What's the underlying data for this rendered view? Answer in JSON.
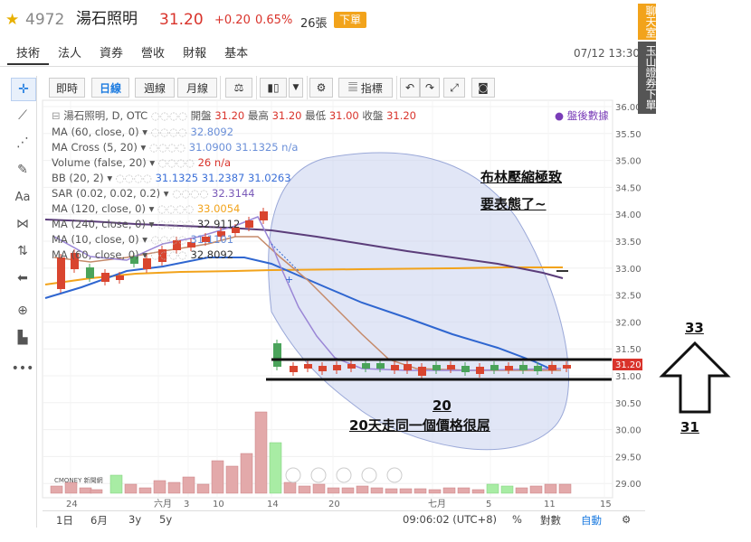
{
  "header": {
    "star_icon": "star-icon",
    "code": "4972",
    "name": "湯石照明",
    "price": "31.20",
    "change": "+0.20",
    "change_pct": "0.65%",
    "volume": "26張",
    "sell_button": "下單"
  },
  "tabs": [
    "技術",
    "法人",
    "資券",
    "營收",
    "財報",
    "基本"
  ],
  "datetime": "07/12 13:30",
  "toolbar": {
    "realtime": "即時",
    "daily": "日線",
    "weekly": "週線",
    "monthly": "月線",
    "indicators": "指標"
  },
  "legend": {
    "title": "湯石照明, D, OTC",
    "open_label": "開盤",
    "open": "31.20",
    "high_label": "最高",
    "high": "31.20",
    "low_label": "最低",
    "low": "31.00",
    "close_label": "收盤",
    "close": "31.20",
    "after_hours": "盤後數據",
    "rows": [
      {
        "label": "MA (60, close, 0)",
        "values": "32.8092",
        "color": "#6a8fd8"
      },
      {
        "label": "MA Cross (5, 20)",
        "values": "31.0900  31.1325  n/a",
        "color": "#6a8fd8"
      },
      {
        "label": "Volume (false, 20)",
        "values": "26  n/a",
        "color": "#d9332b"
      },
      {
        "label": "BB (20, 2)",
        "values": "31.1325  31.2387  31.0263",
        "color": "#3a6fd8"
      },
      {
        "label": "SAR (0.02, 0.02, 0.2)",
        "values": "32.3144",
        "color": "#7a5ab8"
      },
      {
        "label": "MA (120, close, 0)",
        "values": "33.0054",
        "color": "#f2a31b"
      },
      {
        "label": "MA (240, close, 0)",
        "values": "32.9112",
        "color": "#333333"
      },
      {
        "label": "MA (10, close, 0)",
        "values": "31.1101",
        "color": "#6a8fd8"
      },
      {
        "label": "MA (60, close, 0)",
        "values": "32.8092",
        "color": "#333333"
      }
    ]
  },
  "price_axis": [
    "36.00",
    "35.50",
    "35.00",
    "34.50",
    "34.00",
    "33.50",
    "33.00",
    "32.50",
    "32.00",
    "31.50",
    "31.00",
    "30.50",
    "30.00",
    "29.50",
    "29.00"
  ],
  "current_price_tag": "31.20",
  "date_axis": [
    "24",
    "六月",
    "3",
    "10",
    "14",
    "20",
    "七月",
    "5",
    "11",
    "15"
  ],
  "annotations": {
    "bollinger_note_line1": "布林壓縮極致",
    "bollinger_note_line2": "要表態了~",
    "count": "20",
    "range_note": "20天走同一個價格很屌",
    "arrow_top": "33",
    "arrow_bottom": "31"
  },
  "bottom_bar": {
    "ranges": [
      "1日",
      "6月",
      "3y",
      "5y"
    ],
    "time": "09:06:02 (UTC+8)",
    "percent": "%",
    "log": "對數",
    "auto": "自動"
  },
  "right_panel": {
    "chat": "聊天室",
    "sell": "玉山證券下單"
  },
  "logo_text": "CMONEY 新聞網"
}
